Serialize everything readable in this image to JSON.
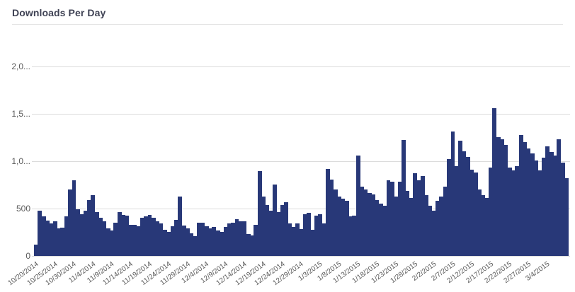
{
  "header": {
    "title": "Downloads Per Day"
  },
  "styles": {
    "background": "#ffffff",
    "bar_color": "#283878",
    "title_color": "#3f4254",
    "axis_label_color": "#5a5a5a",
    "grid_color": "#dcdcdc",
    "divider_color": "#e4e4e4"
  },
  "chart_data": {
    "type": "bar",
    "title": "Downloads Per Day",
    "xlabel": "",
    "ylabel": "",
    "ylim": [
      0,
      2000
    ],
    "grid": "horizontal gridlines at 0, 500, 1000, 1500, 2000",
    "legend": "none",
    "y_ticks": [
      {
        "label": "0",
        "value": 0
      },
      {
        "label": "500",
        "value": 500
      },
      {
        "label": "1,0...",
        "value": 1000
      },
      {
        "label": "1,5...",
        "value": 1500
      },
      {
        "label": "2,0...",
        "value": 2000
      }
    ],
    "x_tick_every": 5,
    "x_tick_labels": [
      "10/20/2014",
      "10/25/2014",
      "10/30/2014",
      "11/4/2014",
      "11/9/2014",
      "11/14/2014",
      "11/19/2014",
      "11/24/2014",
      "11/29/2014",
      "12/4/2014",
      "12/9/2014",
      "12/14/2014",
      "12/19/2014",
      "12/24/2014",
      "12/29/2014",
      "1/3/2015",
      "1/8/2015",
      "1/13/2015",
      "1/18/2015",
      "1/23/2015",
      "1/28/2015",
      "2/2/2015",
      "2/7/2015",
      "2/12/2015",
      "2/17/2015",
      "2/22/2015",
      "2/27/2015",
      "3/4/2015"
    ],
    "x": [
      "10/20/2014",
      "10/21/2014",
      "10/22/2014",
      "10/23/2014",
      "10/24/2014",
      "10/25/2014",
      "10/26/2014",
      "10/27/2014",
      "10/28/2014",
      "10/29/2014",
      "10/30/2014",
      "10/31/2014",
      "11/1/2014",
      "11/2/2014",
      "11/3/2014",
      "11/4/2014",
      "11/5/2014",
      "11/6/2014",
      "11/7/2014",
      "11/8/2014",
      "11/9/2014",
      "11/10/2014",
      "11/11/2014",
      "11/12/2014",
      "11/13/2014",
      "11/14/2014",
      "11/15/2014",
      "11/16/2014",
      "11/17/2014",
      "11/18/2014",
      "11/19/2014",
      "11/20/2014",
      "11/21/2014",
      "11/22/2014",
      "11/23/2014",
      "11/24/2014",
      "11/25/2014",
      "11/26/2014",
      "11/27/2014",
      "11/28/2014",
      "11/29/2014",
      "11/30/2014",
      "12/1/2014",
      "12/2/2014",
      "12/3/2014",
      "12/4/2014",
      "12/5/2014",
      "12/6/2014",
      "12/7/2014",
      "12/8/2014",
      "12/9/2014",
      "12/10/2014",
      "12/11/2014",
      "12/12/2014",
      "12/13/2014",
      "12/14/2014",
      "12/15/2014",
      "12/16/2014",
      "12/17/2014",
      "12/18/2014",
      "12/19/2014",
      "12/20/2014",
      "12/21/2014",
      "12/22/2014",
      "12/23/2014",
      "12/24/2014",
      "12/25/2014",
      "12/26/2014",
      "12/27/2014",
      "12/28/2014",
      "12/29/2014",
      "12/30/2014",
      "12/31/2014",
      "1/1/2015",
      "1/2/2015",
      "1/3/2015",
      "1/4/2015",
      "1/5/2015",
      "1/6/2015",
      "1/7/2015",
      "1/8/2015",
      "1/9/2015",
      "1/10/2015",
      "1/11/2015",
      "1/12/2015",
      "1/13/2015",
      "1/14/2015",
      "1/15/2015",
      "1/16/2015",
      "1/17/2015",
      "1/18/2015",
      "1/19/2015",
      "1/20/2015",
      "1/21/2015",
      "1/22/2015",
      "1/23/2015",
      "1/24/2015",
      "1/25/2015",
      "1/26/2015",
      "1/27/2015",
      "1/28/2015",
      "1/29/2015",
      "1/30/2015",
      "1/31/2015",
      "2/1/2015",
      "2/2/2015",
      "2/3/2015",
      "2/4/2015",
      "2/5/2015",
      "2/6/2015",
      "2/7/2015",
      "2/8/2015",
      "2/9/2015",
      "2/10/2015",
      "2/11/2015",
      "2/12/2015",
      "2/13/2015",
      "2/14/2015",
      "2/15/2015",
      "2/16/2015",
      "2/17/2015",
      "2/18/2015",
      "2/19/2015",
      "2/20/2015",
      "2/21/2015",
      "2/22/2015",
      "2/23/2015",
      "2/24/2015",
      "2/25/2015",
      "2/26/2015",
      "2/27/2015",
      "2/28/2015",
      "3/1/2015",
      "3/2/2015",
      "3/3/2015",
      "3/4/2015",
      "3/5/2015",
      "3/6/2015",
      "3/7/2015",
      "3/8/2015",
      "3/9/2015"
    ],
    "values": [
      120,
      480,
      415,
      375,
      340,
      365,
      290,
      300,
      420,
      700,
      800,
      490,
      440,
      478,
      590,
      645,
      465,
      400,
      365,
      290,
      265,
      350,
      465,
      430,
      425,
      325,
      325,
      315,
      400,
      415,
      430,
      400,
      365,
      340,
      275,
      250,
      315,
      380,
      625,
      320,
      290,
      240,
      210,
      350,
      350,
      315,
      290,
      305,
      265,
      250,
      305,
      340,
      350,
      390,
      365,
      365,
      230,
      220,
      325,
      895,
      630,
      540,
      480,
      755,
      465,
      540,
      565,
      340,
      305,
      340,
      280,
      440,
      455,
      275,
      427,
      440,
      340,
      920,
      805,
      705,
      630,
      605,
      580,
      415,
      425,
      1058,
      730,
      700,
      665,
      650,
      590,
      555,
      530,
      795,
      780,
      630,
      780,
      1223,
      690,
      615,
      870,
      795,
      845,
      640,
      530,
      480,
      580,
      630,
      730,
      1020,
      1310,
      945,
      1220,
      1105,
      1045,
      910,
      880,
      705,
      645,
      615,
      930,
      1560,
      1250,
      1235,
      1170,
      930,
      905,
      945,
      1275,
      1200,
      1135,
      1085,
      1010,
      900,
      1035,
      1160,
      1100,
      1060,
      1235,
      985,
      820
    ]
  }
}
